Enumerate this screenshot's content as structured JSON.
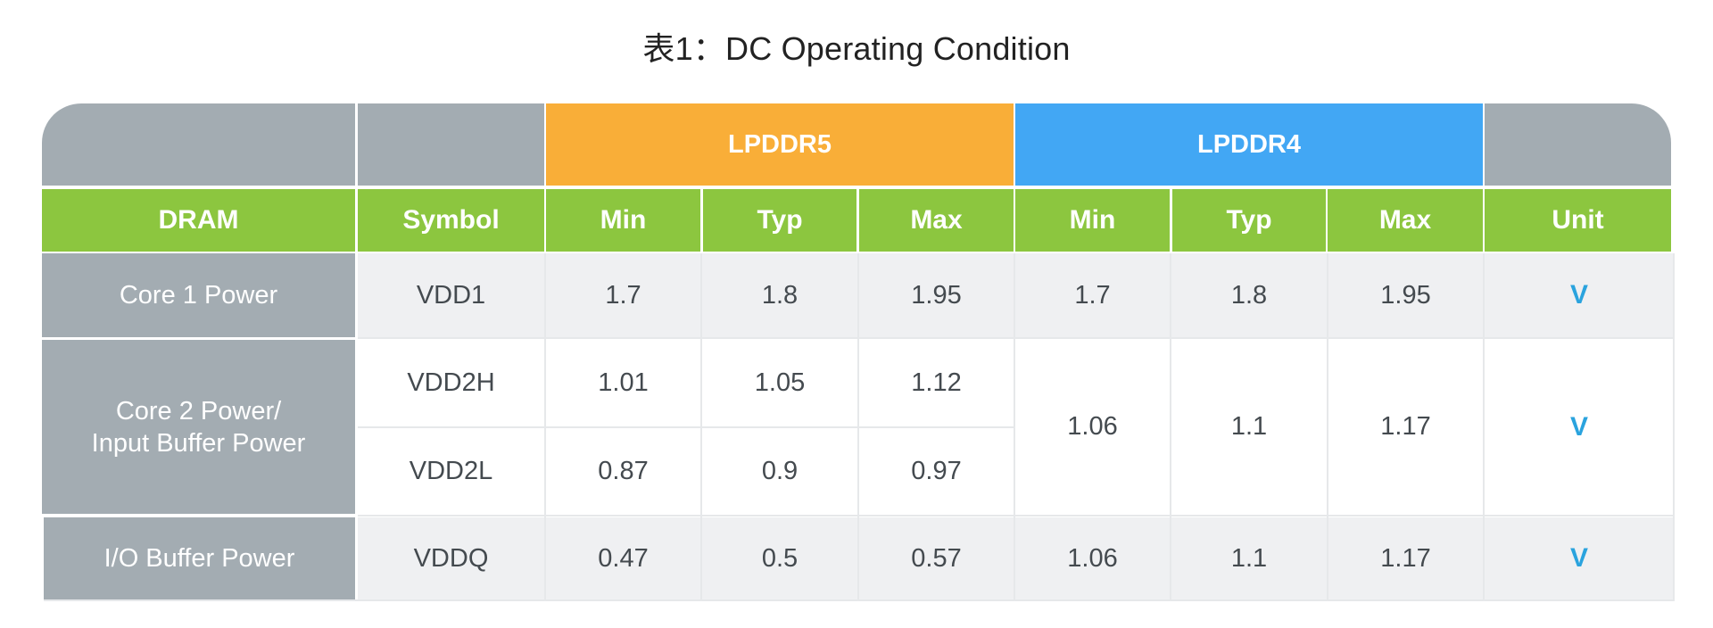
{
  "title": "表1：DC Operating Condition",
  "groups": {
    "lpddr5": "LPDDR5",
    "lpddr4": "LPDDR4"
  },
  "headers": {
    "dram": "DRAM",
    "symbol": "Symbol",
    "lp5_min": "Min",
    "lp5_typ": "Typ",
    "lp5_max": "Max",
    "lp4_min": "Min",
    "lp4_typ": "Typ",
    "lp4_max": "Max",
    "unit": "Unit"
  },
  "rows": {
    "core1": {
      "label": "Core 1 Power",
      "symbol": "VDD1",
      "lp5_min": "1.7",
      "lp5_typ": "1.8",
      "lp5_max": "1.95",
      "lp4_min": "1.7",
      "lp4_typ": "1.8",
      "lp4_max": "1.95",
      "unit": "V"
    },
    "core2": {
      "label_line1": "Core 2 Power/",
      "label_line2": "Input Buffer Power",
      "vdd2h": {
        "symbol": "VDD2H",
        "lp5_min": "1.01",
        "lp5_typ": "1.05",
        "lp5_max": "1.12"
      },
      "vdd2l": {
        "symbol": "VDD2L",
        "lp5_min": "0.87",
        "lp5_typ": "0.9",
        "lp5_max": "0.97"
      },
      "lp4_min": "1.06",
      "lp4_typ": "1.1",
      "lp4_max": "1.17",
      "unit": "V"
    },
    "io": {
      "label": "I/O Buffer Power",
      "symbol": "VDDQ",
      "lp5_min": "0.47",
      "lp5_typ": "0.5",
      "lp5_max": "0.57",
      "lp4_min": "1.06",
      "lp4_typ": "1.1",
      "lp4_max": "1.17",
      "unit": "V"
    }
  },
  "colors": {
    "lpddr5": "#f9ae38",
    "lpddr4": "#42a7f4",
    "header_green": "#8cc63f",
    "label_gray": "#a3acb2",
    "unit_blue": "#2aa3de"
  }
}
